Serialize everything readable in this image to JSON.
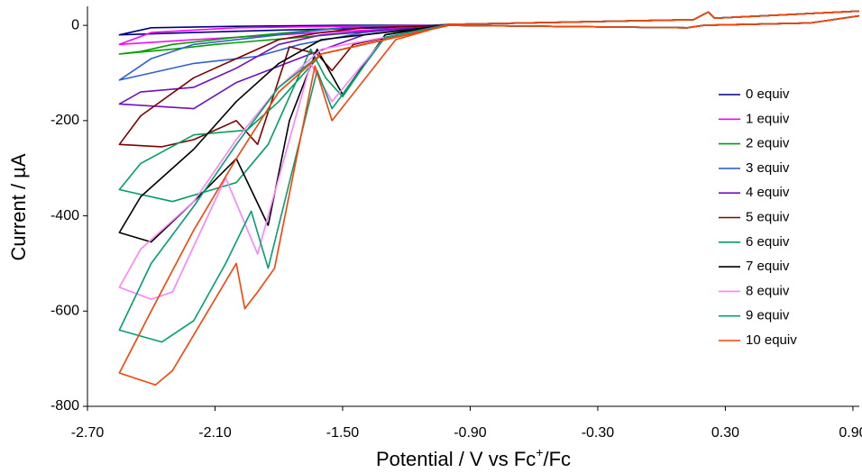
{
  "chart_data": {
    "type": "line",
    "y_label": "Current / µA",
    "x_label_parts": [
      "Potential / V vs Fc",
      "+",
      "/Fc"
    ],
    "xlim": [
      -2.7,
      0.93
    ],
    "ylim": [
      -800,
      40
    ],
    "xticks": [
      {
        "value": -2.7,
        "label": "-2.70"
      },
      {
        "value": -2.1,
        "label": "-2.10"
      },
      {
        "value": -1.5,
        "label": "-1.50"
      },
      {
        "value": -0.9,
        "label": "-0.90"
      },
      {
        "value": -0.3,
        "label": "-0.30"
      },
      {
        "value": 0.3,
        "label": "0.30"
      },
      {
        "value": 0.9,
        "label": "0.90"
      }
    ],
    "yticks": [
      -800,
      -600,
      -400,
      -200,
      0
    ],
    "grid": false,
    "legend": "right",
    "series": [
      {
        "name": "0 equiv",
        "color": "#000080",
        "x": [
          0.93,
          0.25,
          0.22,
          0.15,
          -1.0,
          -1.3,
          -1.8,
          -2.2,
          -2.55,
          -2.4,
          -2.0,
          -1.5,
          -1.0,
          0.12,
          0.2,
          0.7,
          0.93
        ],
        "values": [
          30,
          15,
          28,
          12,
          2,
          -5,
          -10,
          -15,
          -20,
          -5,
          -2,
          0,
          0,
          -5,
          0,
          5,
          20
        ]
      },
      {
        "name": "1 equiv",
        "color": "#ff00ff",
        "x": [
          0.93,
          0.25,
          0.22,
          0.15,
          -1.0,
          -1.3,
          -1.8,
          -2.2,
          -2.55,
          -2.4,
          -2.0,
          -1.5,
          -1.0,
          0.12,
          0.2,
          0.7,
          0.93
        ],
        "values": [
          30,
          15,
          28,
          12,
          2,
          -8,
          -20,
          -30,
          -40,
          -15,
          -5,
          -2,
          0,
          -5,
          0,
          5,
          20
        ]
      },
      {
        "name": "2 equiv",
        "color": "#00a000",
        "x": [
          0.93,
          0.25,
          0.22,
          0.15,
          -1.0,
          -1.3,
          -1.7,
          -2.1,
          -2.3,
          -2.55,
          -2.45,
          -2.3,
          -2.0,
          -1.5,
          -1.0,
          0.12,
          0.2,
          0.7,
          0.93
        ],
        "values": [
          30,
          15,
          28,
          12,
          2,
          -10,
          -25,
          -40,
          -50,
          -60,
          -55,
          -40,
          -25,
          -5,
          0,
          -5,
          0,
          5,
          20
        ]
      },
      {
        "name": "3 equiv",
        "color": "#3060d0",
        "x": [
          0.93,
          0.25,
          0.22,
          0.15,
          -1.0,
          -1.4,
          -1.7,
          -1.9,
          -2.2,
          -2.55,
          -2.4,
          -2.2,
          -1.8,
          -1.5,
          -1.0,
          0.12,
          0.2,
          0.7,
          0.93
        ],
        "values": [
          30,
          15,
          28,
          12,
          2,
          -15,
          -40,
          -65,
          -80,
          -115,
          -70,
          -40,
          -20,
          -5,
          0,
          -5,
          0,
          5,
          20
        ]
      },
      {
        "name": "4 equiv",
        "color": "#7010c0",
        "x": [
          0.93,
          0.25,
          0.22,
          0.15,
          -1.0,
          -1.4,
          -1.65,
          -2.0,
          -2.2,
          -2.55,
          -2.45,
          -2.2,
          -2.0,
          -1.8,
          -1.6,
          -1.0,
          0.12,
          0.2,
          0.7,
          0.93
        ],
        "values": [
          30,
          15,
          28,
          12,
          2,
          -20,
          -60,
          -120,
          -175,
          -165,
          -140,
          -130,
          -90,
          -40,
          -20,
          0,
          -5,
          0,
          5,
          20
        ]
      },
      {
        "name": "5 equiv",
        "color": "#800000",
        "x": [
          0.93,
          0.25,
          0.22,
          0.15,
          -1.0,
          -1.45,
          -1.55,
          -1.62,
          -1.75,
          -1.9,
          -2.0,
          -2.2,
          -2.35,
          -2.55,
          -2.45,
          -2.2,
          -2.0,
          -1.8,
          -1.6,
          -1.4,
          -1.0,
          0.12,
          0.2,
          0.7,
          0.93
        ],
        "values": [
          30,
          15,
          28,
          12,
          2,
          -40,
          -95,
          -60,
          -45,
          -250,
          -200,
          -240,
          -255,
          -250,
          -190,
          -110,
          -70,
          -30,
          -15,
          -5,
          0,
          -5,
          0,
          5,
          20
        ]
      },
      {
        "name": "6 equiv",
        "color": "#00a060",
        "x": [
          0.93,
          0.25,
          0.22,
          0.15,
          -1.0,
          -1.3,
          -1.5,
          -1.58,
          -1.65,
          -1.85,
          -2.0,
          -2.3,
          -2.55,
          -2.45,
          -2.2,
          -1.95,
          -1.8,
          -1.6,
          -1.0,
          0.12,
          0.2,
          0.7,
          0.93
        ],
        "values": [
          30,
          15,
          28,
          12,
          2,
          -20,
          -150,
          -110,
          -50,
          -250,
          -330,
          -370,
          -345,
          -290,
          -230,
          -220,
          -160,
          -60,
          0,
          -5,
          0,
          5,
          20
        ]
      },
      {
        "name": "7 equiv",
        "color": "#000000",
        "x": [
          0.93,
          0.25,
          0.22,
          0.15,
          -1.0,
          -1.3,
          -1.5,
          -1.62,
          -1.75,
          -1.85,
          -2.0,
          -2.2,
          -2.4,
          -2.55,
          -2.45,
          -2.2,
          -2.0,
          -1.8,
          -1.6,
          -1.0,
          0.12,
          0.2,
          0.7,
          0.93
        ],
        "values": [
          30,
          15,
          28,
          12,
          2,
          -20,
          -145,
          -50,
          -200,
          -420,
          -280,
          -370,
          -455,
          -435,
          -360,
          -260,
          -160,
          -80,
          -30,
          0,
          -5,
          0,
          5,
          20
        ]
      },
      {
        "name": "8 equiv",
        "color": "#ff80ff",
        "x": [
          0.93,
          0.25,
          0.22,
          0.15,
          -1.0,
          -1.3,
          -1.55,
          -1.65,
          -1.9,
          -2.05,
          -2.3,
          -2.4,
          -2.55,
          -2.45,
          -2.2,
          -2.0,
          -1.8,
          -1.6,
          -1.0,
          0.12,
          0.2,
          0.7,
          0.93
        ],
        "values": [
          30,
          15,
          28,
          12,
          2,
          -25,
          -160,
          -80,
          -480,
          -320,
          -560,
          -575,
          -550,
          -470,
          -370,
          -240,
          -130,
          -50,
          0,
          -5,
          0,
          5,
          20
        ]
      },
      {
        "name": "9 equiv",
        "color": "#00a070",
        "x": [
          0.93,
          0.25,
          0.22,
          0.15,
          -1.0,
          -1.3,
          -1.55,
          -1.62,
          -1.85,
          -1.93,
          -2.05,
          -2.2,
          -2.35,
          -2.55,
          -2.4,
          -2.2,
          -2.0,
          -1.8,
          -1.6,
          -1.0,
          0.12,
          0.2,
          0.7,
          0.93
        ],
        "values": [
          30,
          15,
          28,
          12,
          2,
          -25,
          -175,
          -95,
          -510,
          -390,
          -500,
          -620,
          -665,
          -640,
          -500,
          -380,
          -250,
          -130,
          -60,
          0,
          -5,
          0,
          5,
          20
        ]
      },
      {
        "name": "10 equiv",
        "color": "#ff4000",
        "x": [
          0.93,
          0.25,
          0.22,
          0.15,
          -1.0,
          -1.25,
          -1.55,
          -1.63,
          -1.82,
          -1.9,
          -1.96,
          -2.0,
          -2.3,
          -2.38,
          -2.55,
          -2.4,
          -2.2,
          -2.0,
          -1.8,
          -1.6,
          -1.0,
          0.12,
          0.2,
          0.7,
          0.93
        ],
        "values": [
          30,
          15,
          28,
          12,
          2,
          -30,
          -200,
          -85,
          -510,
          -560,
          -595,
          -500,
          -725,
          -755,
          -730,
          -600,
          -430,
          -280,
          -140,
          -60,
          0,
          -5,
          0,
          5,
          20
        ]
      }
    ]
  }
}
